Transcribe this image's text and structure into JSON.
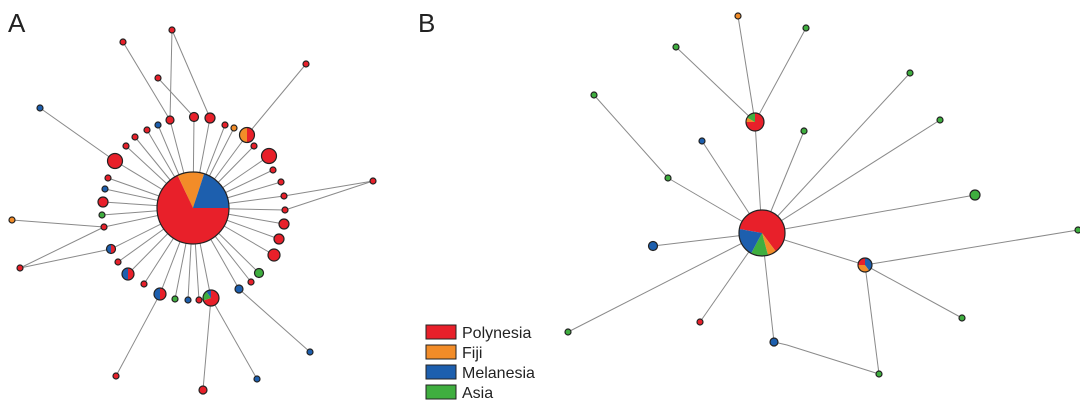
{
  "figure": {
    "panels": [
      {
        "label": "A"
      },
      {
        "label": "B"
      }
    ],
    "legend": [
      {
        "label": "Polynesia",
        "color": "#e8202a"
      },
      {
        "label": "Fiji",
        "color": "#f28c28"
      },
      {
        "label": "Melanesia",
        "color": "#1d5fae"
      },
      {
        "label": "Asia",
        "color": "#3fae3f"
      }
    ]
  }
}
